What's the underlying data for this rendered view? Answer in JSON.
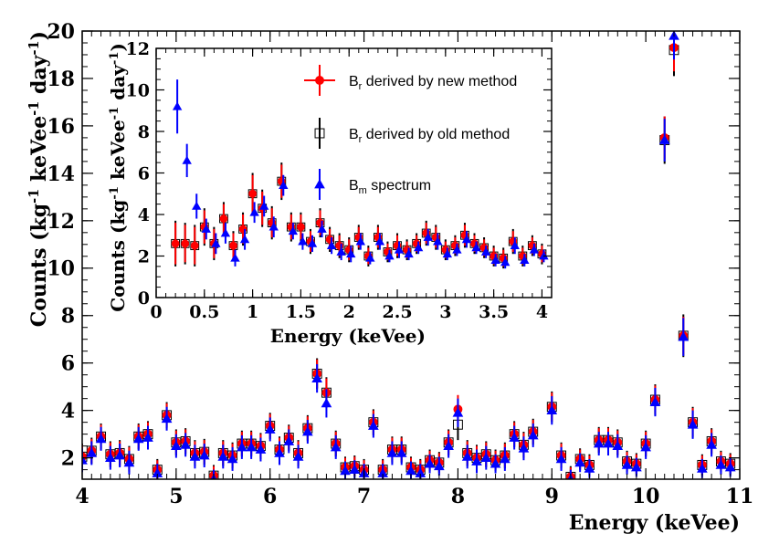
{
  "colors": {
    "new_method": "#ff0000",
    "old_method": "#000000",
    "bm_spectrum": "#0000ff",
    "axis": "#000000",
    "background": "#ffffff"
  },
  "chart_data": [
    {
      "id": "main",
      "type": "scatter",
      "xlabel": "Energy (keVee)",
      "ylabel": "Counts (kg",
      "ylabel_parts": [
        "Counts (kg",
        "-1",
        " keVee",
        "-1",
        " day",
        "-1",
        ")"
      ],
      "xlim": [
        4,
        11
      ],
      "ylim": [
        1.1,
        20
      ],
      "xticks": [
        4,
        5,
        6,
        7,
        8,
        9,
        10,
        11
      ],
      "xtick_labels": [
        "4",
        "5",
        "6",
        "7",
        "8",
        "9",
        "10",
        "11"
      ],
      "yticks": [
        2,
        4,
        6,
        8,
        10,
        12,
        14,
        16,
        18,
        20
      ],
      "ytick_labels": [
        "2",
        "4",
        "6",
        "8",
        "10",
        "12",
        "14",
        "16",
        "18",
        "20"
      ],
      "x": [
        4.0,
        4.1,
        4.2,
        4.3,
        4.4,
        4.5,
        4.6,
        4.7,
        4.8,
        4.9,
        5.0,
        5.1,
        5.2,
        5.3,
        5.4,
        5.5,
        5.6,
        5.7,
        5.8,
        5.9,
        6.0,
        6.1,
        6.2,
        6.3,
        6.4,
        6.5,
        6.6,
        6.7,
        6.8,
        6.9,
        7.0,
        7.1,
        7.2,
        7.3,
        7.4,
        7.5,
        7.6,
        7.7,
        7.8,
        7.9,
        8.0,
        8.1,
        8.2,
        8.3,
        8.4,
        8.5,
        8.6,
        8.7,
        8.8,
        8.9,
        9.0,
        9.1,
        9.2,
        9.3,
        9.4,
        9.5,
        9.6,
        9.7,
        9.8,
        9.9,
        10.0,
        10.1,
        10.2,
        10.3,
        10.4,
        10.5,
        10.6,
        10.7,
        10.8,
        10.9,
        11.0
      ],
      "series": [
        {
          "name": "B_r derived by new method",
          "marker": "circle",
          "color": "#ff0000",
          "values": [
            2.05,
            2.3,
            2.9,
            2.15,
            2.2,
            1.95,
            2.9,
            3.0,
            1.5,
            3.8,
            2.65,
            2.7,
            2.2,
            2.25,
            1.25,
            2.2,
            2.1,
            2.6,
            2.6,
            2.5,
            3.35,
            2.35,
            2.85,
            2.2,
            3.25,
            5.55,
            4.75,
            2.6,
            1.6,
            1.65,
            1.5,
            3.5,
            1.5,
            2.35,
            2.35,
            1.6,
            1.5,
            1.9,
            1.8,
            2.65,
            4.05,
            2.2,
            2.0,
            2.15,
            1.9,
            2.1,
            3.0,
            2.55,
            3.1,
            null,
            4.15,
            2.1,
            1.2,
            1.95,
            1.7,
            2.75,
            2.75,
            2.65,
            1.85,
            1.75,
            2.6,
            4.45,
            15.5,
            19.3,
            7.15,
            3.5,
            1.7,
            2.7,
            1.85,
            1.75,
            null
          ],
          "errors": [
            0.5,
            0.5,
            0.5,
            0.5,
            0.5,
            0.5,
            0.5,
            0.5,
            0.4,
            0.5,
            0.5,
            0.5,
            0.5,
            0.5,
            0.4,
            0.5,
            0.5,
            0.5,
            0.5,
            0.5,
            0.5,
            0.5,
            0.5,
            0.5,
            0.5,
            0.6,
            0.6,
            0.5,
            0.4,
            0.4,
            0.4,
            0.5,
            0.4,
            0.5,
            0.5,
            0.4,
            0.4,
            0.4,
            0.4,
            0.5,
            0.6,
            0.5,
            0.5,
            0.5,
            0.4,
            0.5,
            0.5,
            0.5,
            0.5,
            0,
            0.6,
            0.5,
            0.4,
            0.4,
            0.4,
            0.5,
            0.5,
            0.5,
            0.4,
            0.4,
            0.5,
            0.6,
            0.9,
            1.0,
            0.8,
            0.6,
            0.4,
            0.5,
            0.4,
            0.4,
            0
          ]
        },
        {
          "name": "B_r derived by old method",
          "marker": "open-square",
          "color": "#000000",
          "values": [
            2.05,
            2.3,
            2.9,
            2.15,
            2.2,
            1.95,
            2.9,
            3.0,
            1.5,
            3.8,
            2.65,
            2.7,
            2.2,
            2.25,
            1.25,
            2.2,
            2.1,
            2.6,
            2.6,
            2.5,
            3.35,
            2.35,
            2.85,
            2.2,
            3.25,
            5.55,
            4.75,
            2.6,
            1.6,
            1.65,
            1.5,
            3.5,
            1.5,
            2.35,
            2.35,
            1.6,
            1.5,
            1.9,
            1.8,
            2.65,
            3.4,
            2.2,
            2.0,
            2.15,
            1.9,
            2.1,
            3.0,
            2.55,
            3.1,
            null,
            4.15,
            2.1,
            1.2,
            1.95,
            1.7,
            2.75,
            2.75,
            2.65,
            1.85,
            1.75,
            2.6,
            4.45,
            15.4,
            19.2,
            7.15,
            3.5,
            1.7,
            2.7,
            1.85,
            1.75,
            null
          ],
          "errors": [
            0.55,
            0.55,
            0.55,
            0.55,
            0.55,
            0.55,
            0.55,
            0.55,
            0.45,
            0.55,
            0.55,
            0.55,
            0.55,
            0.55,
            0.45,
            0.55,
            0.55,
            0.55,
            0.55,
            0.55,
            0.55,
            0.55,
            0.55,
            0.55,
            0.55,
            0.65,
            0.65,
            0.55,
            0.45,
            0.45,
            0.45,
            0.55,
            0.45,
            0.55,
            0.55,
            0.45,
            0.45,
            0.45,
            0.45,
            0.55,
            0.65,
            0.55,
            0.55,
            0.55,
            0.45,
            0.55,
            0.55,
            0.55,
            0.55,
            0,
            0.65,
            0.55,
            0.45,
            0.45,
            0.45,
            0.55,
            0.55,
            0.55,
            0.45,
            0.45,
            0.55,
            0.65,
            1.0,
            1.1,
            0.9,
            0.65,
            0.45,
            0.55,
            0.45,
            0.45,
            0
          ]
        },
        {
          "name": "B_m spectrum",
          "marker": "triangle",
          "color": "#0000ff",
          "values": [
            1.9,
            2.2,
            2.8,
            2.0,
            2.1,
            1.8,
            2.8,
            2.85,
            1.35,
            3.65,
            2.5,
            2.55,
            2.05,
            2.1,
            1.1,
            2.05,
            1.95,
            2.45,
            2.45,
            2.35,
            3.2,
            2.2,
            2.7,
            2.05,
            3.1,
            5.35,
            4.3,
            2.45,
            1.45,
            1.5,
            1.35,
            3.35,
            1.35,
            2.2,
            2.2,
            1.45,
            1.35,
            1.75,
            1.65,
            2.5,
            3.9,
            2.05,
            1.85,
            2.0,
            1.75,
            1.95,
            2.85,
            2.4,
            2.95,
            null,
            4.0,
            1.95,
            1.1,
            1.8,
            1.55,
            2.6,
            2.6,
            2.5,
            1.7,
            1.6,
            2.45,
            4.35,
            15.4,
            19.8,
            7.1,
            3.4,
            1.55,
            2.55,
            1.7,
            1.6,
            null
          ],
          "errors": [
            0.5,
            0.5,
            0.5,
            0.5,
            0.5,
            0.5,
            0.5,
            0.5,
            0.4,
            0.5,
            0.5,
            0.5,
            0.5,
            0.5,
            0.4,
            0.5,
            0.5,
            0.5,
            0.5,
            0.5,
            0.5,
            0.5,
            0.5,
            0.5,
            0.5,
            0.6,
            0.6,
            0.5,
            0.4,
            0.4,
            0.4,
            0.5,
            0.4,
            0.5,
            0.5,
            0.4,
            0.4,
            0.4,
            0.4,
            0.5,
            0.6,
            0.5,
            0.5,
            0.5,
            0.4,
            0.5,
            0.5,
            0.5,
            0.5,
            0,
            0.6,
            0.5,
            0.4,
            0.4,
            0.4,
            0.5,
            0.5,
            0.5,
            0.4,
            0.4,
            0.5,
            0.6,
            0.9,
            1.0,
            0.8,
            0.6,
            0.4,
            0.5,
            0.4,
            0.4,
            0
          ]
        }
      ]
    },
    {
      "id": "inset",
      "type": "scatter",
      "xlabel": "Energy (keVee)",
      "ylabel_parts": [
        "Counts (kg",
        "-1",
        " keVee",
        "-1",
        " day",
        "-1",
        ")"
      ],
      "xlim": [
        0,
        4.1
      ],
      "ylim": [
        0,
        12
      ],
      "xticks": [
        0,
        0.5,
        1,
        1.5,
        2,
        2.5,
        3,
        3.5,
        4
      ],
      "xtick_labels": [
        "0",
        "0.5",
        "1",
        "1.5",
        "2",
        "2.5",
        "3",
        "3.5",
        "4"
      ],
      "yticks": [
        0,
        2,
        4,
        6,
        8,
        10,
        12
      ],
      "ytick_labels": [
        "0",
        "2",
        "4",
        "6",
        "8",
        "10",
        "12"
      ],
      "x": [
        0.2,
        0.3,
        0.4,
        0.5,
        0.6,
        0.7,
        0.8,
        0.9,
        1.0,
        1.1,
        1.2,
        1.3,
        1.4,
        1.5,
        1.6,
        1.7,
        1.8,
        1.9,
        2.0,
        2.1,
        2.2,
        2.3,
        2.4,
        2.5,
        2.6,
        2.7,
        2.8,
        2.9,
        3.0,
        3.1,
        3.2,
        3.3,
        3.4,
        3.5,
        3.6,
        3.7,
        3.8,
        3.9,
        4.0
      ],
      "series": [
        {
          "name": "B_r derived by new method",
          "marker": "circle",
          "color": "#ff0000",
          "values": [
            2.6,
            2.6,
            2.5,
            3.4,
            2.6,
            3.8,
            2.5,
            3.3,
            5.0,
            4.3,
            3.6,
            5.6,
            3.4,
            3.4,
            2.7,
            3.6,
            2.8,
            2.5,
            2.3,
            2.9,
            2.0,
            2.9,
            2.2,
            2.5,
            2.3,
            2.6,
            3.1,
            2.9,
            2.3,
            2.5,
            3.0,
            2.6,
            2.4,
            2.0,
            1.9,
            2.7,
            2.0,
            2.5,
            2.1
          ],
          "errors": [
            1.0,
            0.9,
            0.9,
            0.8,
            0.7,
            0.7,
            0.6,
            0.7,
            0.9,
            0.8,
            0.7,
            0.8,
            0.6,
            0.6,
            0.5,
            0.6,
            0.5,
            0.5,
            0.5,
            0.5,
            0.4,
            0.5,
            0.4,
            0.5,
            0.4,
            0.4,
            0.5,
            0.5,
            0.4,
            0.4,
            0.5,
            0.4,
            0.4,
            0.4,
            0.4,
            0.5,
            0.4,
            0.4,
            0.4
          ]
        },
        {
          "name": "B_r derived by old method",
          "marker": "open-square",
          "color": "#000000",
          "values": [
            2.6,
            2.6,
            2.5,
            3.4,
            2.6,
            3.8,
            2.5,
            3.3,
            5.0,
            4.3,
            3.6,
            5.6,
            3.4,
            3.4,
            2.7,
            3.6,
            2.8,
            2.5,
            2.3,
            2.9,
            2.0,
            2.9,
            2.2,
            2.5,
            2.3,
            2.6,
            3.1,
            2.9,
            2.3,
            2.5,
            3.0,
            2.6,
            2.4,
            2.0,
            1.9,
            2.7,
            2.0,
            2.5,
            2.1
          ],
          "errors": [
            1.1,
            1.0,
            1.0,
            0.9,
            0.8,
            0.8,
            0.7,
            0.8,
            1.0,
            0.9,
            0.8,
            0.9,
            0.7,
            0.7,
            0.6,
            0.7,
            0.6,
            0.6,
            0.6,
            0.6,
            0.5,
            0.6,
            0.5,
            0.6,
            0.5,
            0.5,
            0.6,
            0.6,
            0.5,
            0.5,
            0.6,
            0.5,
            0.5,
            0.5,
            0.5,
            0.6,
            0.5,
            0.5,
            0.5
          ]
        },
        {
          "name": "B_m spectrum",
          "marker": "triangle",
          "color": "#0000ff",
          "values": [
            9.2,
            6.6,
            4.4,
            3.3,
            2.6,
            3.1,
            1.9,
            2.8,
            4.1,
            4.4,
            3.4,
            5.4,
            3.2,
            2.7,
            2.6,
            3.3,
            2.5,
            2.2,
            2.1,
            2.7,
            1.9,
            2.7,
            2.0,
            2.3,
            2.1,
            2.4,
            2.9,
            2.7,
            2.1,
            2.3,
            2.8,
            2.4,
            2.2,
            1.8,
            1.7,
            2.5,
            1.8,
            2.3,
            2.0
          ],
          "errors": [
            1.3,
            0.8,
            0.6,
            0.5,
            0.5,
            0.5,
            0.4,
            0.5,
            0.5,
            0.5,
            0.5,
            0.5,
            0.4,
            0.4,
            0.4,
            0.4,
            0.4,
            0.4,
            0.4,
            0.4,
            0.3,
            0.4,
            0.3,
            0.4,
            0.3,
            0.3,
            0.4,
            0.4,
            0.3,
            0.3,
            0.4,
            0.3,
            0.3,
            0.3,
            0.3,
            0.4,
            0.3,
            0.3,
            0.3
          ]
        }
      ]
    }
  ],
  "legend": {
    "entries": [
      {
        "main": "B",
        "sub": "r",
        "rest": " derived by new method",
        "marker": "circle",
        "color": "#ff0000"
      },
      {
        "main": "B",
        "sub": "r",
        "rest": " derived by old method",
        "marker": "open-square",
        "color": "#000000"
      },
      {
        "main": "B",
        "sub": "m",
        "rest": " spectrum",
        "marker": "triangle",
        "color": "#0000ff"
      }
    ]
  }
}
